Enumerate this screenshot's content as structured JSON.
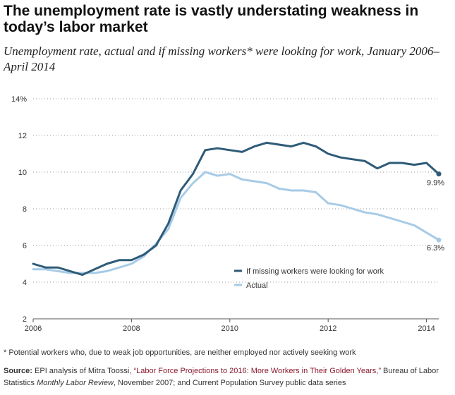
{
  "title": "The unemployment rate is vastly understating weakness in today’s labor market",
  "subtitle": "Unemployment rate, actual and if missing workers* were looking for work, January 2006–April 2014",
  "footnote": "* Potential workers who, due to weak job opportunities, are neither employed nor actively seeking work",
  "source": {
    "label": "Source:",
    "text1": " EPI analysis of Mitra Toossi, ",
    "quote": "“Labor Force Projections to 2016: More Workers in Their Golden Years,”",
    "text2": " Bureau of Labor Statistics ",
    "journal": "Monthly Labor Review",
    "text3": ", November 2007; and Current Population Survey public data series"
  },
  "colors": {
    "missing": "#2e5b78",
    "actual": "#a7cbe6",
    "grid": "#9a9a9a",
    "axis": "#555555"
  },
  "chart_data": {
    "type": "line",
    "xlabel": "",
    "ylabel": "",
    "xlim": [
      2006,
      2014.25
    ],
    "ylim": [
      2,
      14
    ],
    "x_ticks": [
      "2006",
      "2008",
      "2010",
      "2012",
      "2014"
    ],
    "y_ticks": [
      "2",
      "4",
      "6",
      "8",
      "10",
      "12",
      "14%"
    ],
    "legend_position": "lower-right",
    "grid": true,
    "end_labels": [
      "9.9%",
      "6.3%"
    ],
    "x_start": 2006,
    "x_step": 0.25,
    "series": [
      {
        "name": "If missing workers were looking for work",
        "color": "#2e5b78",
        "values": [
          5.0,
          4.8,
          4.8,
          4.6,
          4.4,
          4.7,
          5.0,
          5.2,
          5.2,
          5.5,
          6.0,
          7.2,
          9.0,
          9.9,
          11.2,
          11.3,
          11.2,
          11.1,
          11.4,
          11.6,
          11.5,
          11.4,
          11.6,
          11.4,
          11.0,
          10.8,
          10.7,
          10.6,
          10.2,
          10.5,
          10.5,
          10.4,
          10.5,
          9.9
        ]
      },
      {
        "name": "Actual",
        "color": "#a7cbe6",
        "values": [
          4.7,
          4.7,
          4.6,
          4.5,
          4.5,
          4.5,
          4.6,
          4.8,
          5.0,
          5.4,
          6.1,
          6.9,
          8.6,
          9.4,
          10.0,
          9.8,
          9.9,
          9.6,
          9.5,
          9.4,
          9.1,
          9.0,
          9.0,
          8.9,
          8.3,
          8.2,
          8.0,
          7.8,
          7.7,
          7.5,
          7.3,
          7.1,
          6.7,
          6.3
        ]
      }
    ]
  }
}
